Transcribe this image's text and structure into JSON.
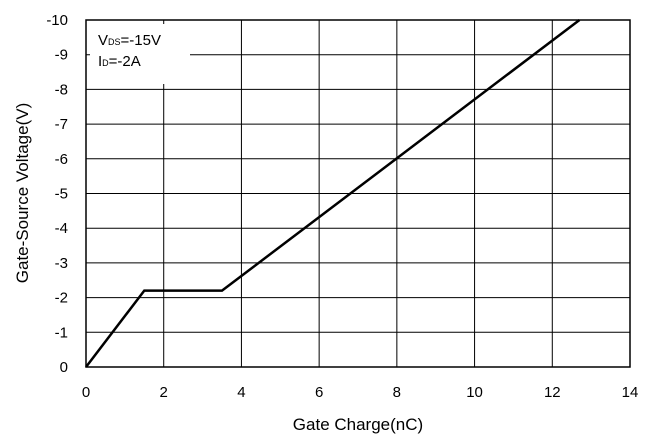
{
  "chart_data": {
    "type": "line",
    "title": "",
    "xlabel": "Gate Charge(nC)",
    "ylabel": "Gate-Source Voltage(V)",
    "xlim": [
      0,
      14
    ],
    "ylim": [
      0,
      -10
    ],
    "x_ticks": [
      "0",
      "2",
      "4",
      "6",
      "8",
      "10",
      "12",
      "14"
    ],
    "y_ticks": [
      "0",
      "-1",
      "-2",
      "-3",
      "-4",
      "-5",
      "-6",
      "-7",
      "-8",
      "-9",
      "-10"
    ],
    "grid": true,
    "legend": "none",
    "annotation": {
      "line1_main": "V",
      "line1_sub": "DS",
      "line1_value": "=-15V",
      "line2_main": "I",
      "line2_sub": "D",
      "line2_value": "=-2A"
    },
    "series": [
      {
        "x": [
          0,
          1.5,
          3.5,
          12.7
        ],
        "y": [
          0,
          -2.2,
          -2.2,
          -10
        ],
        "color": "#000000"
      }
    ]
  }
}
